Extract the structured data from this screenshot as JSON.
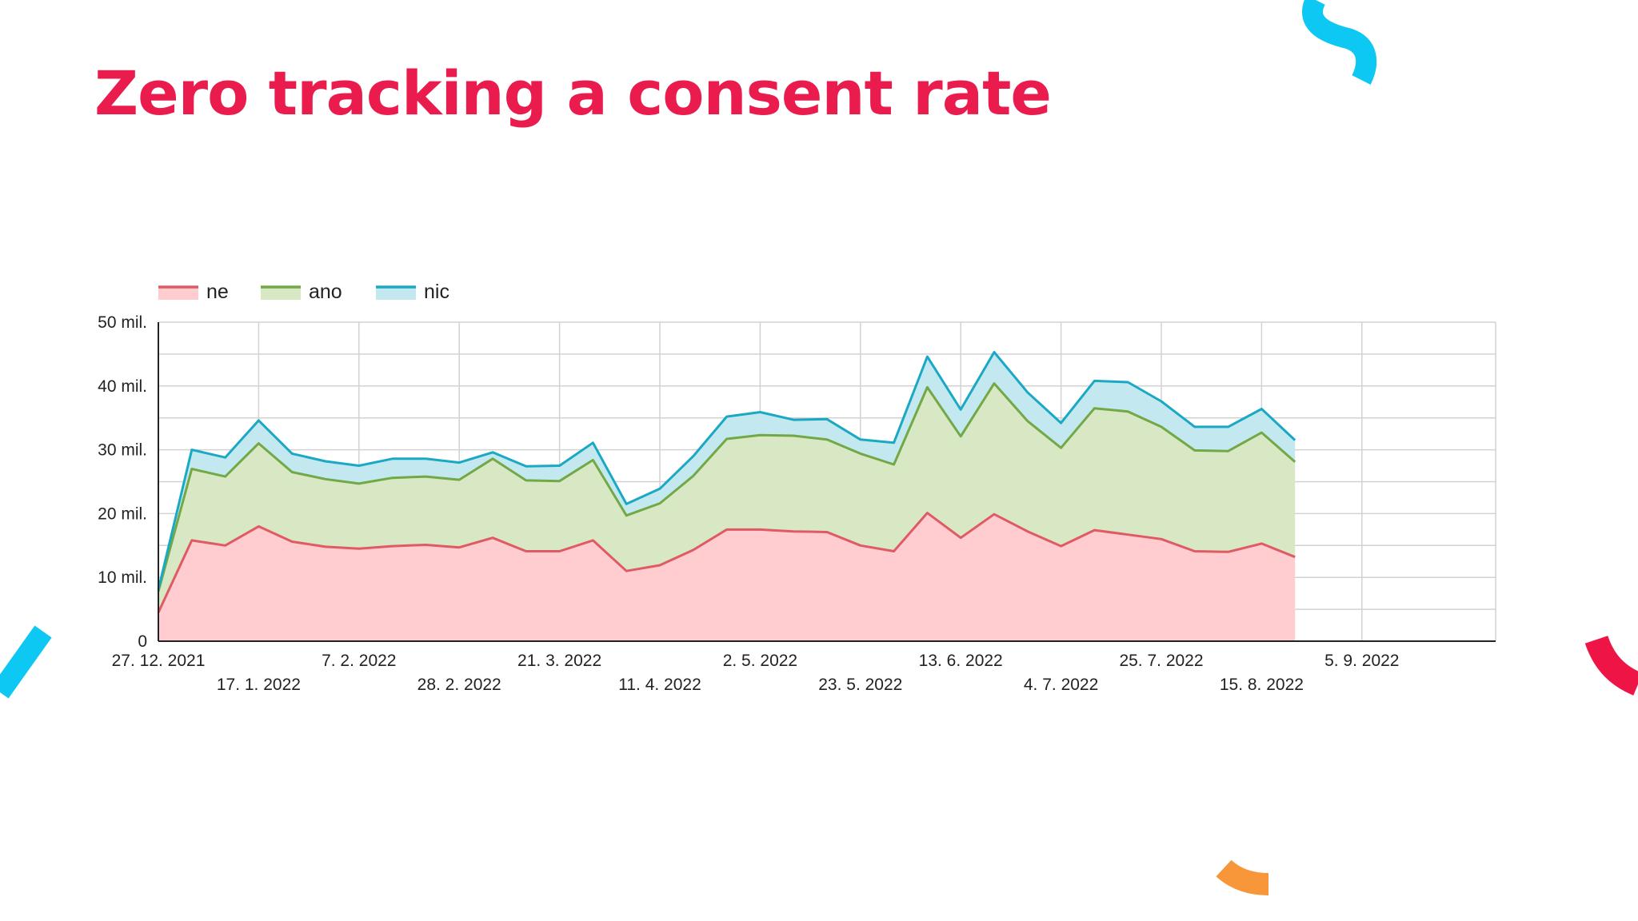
{
  "slide": {
    "title": "Zero tracking a consent rate"
  },
  "colors": {
    "title": "#ea1c4d",
    "ne_line": "#e05a63",
    "ne_fill": "#ffccd0",
    "ano_line": "#72a845",
    "ano_fill": "#d8e8c4",
    "nic_line": "#1aa9c4",
    "nic_fill": "#c4e8f0",
    "deco_cyan": "#0cc8f2",
    "deco_red": "#ee1446",
    "deco_orange": "#f7973a"
  },
  "chart_data": {
    "type": "area",
    "stacked": true,
    "grid": true,
    "legend_position": "top-left",
    "x_unit": "date",
    "x_range": [
      "2021-12-27",
      "2022-10-03"
    ],
    "y_range": [
      0,
      50
    ],
    "y_unit": "mil.",
    "y_ticks": [
      0,
      10,
      20,
      30,
      40,
      50
    ],
    "y_tick_labels": [
      "0",
      "10 mil.",
      "20 mil.",
      "30 mil.",
      "40 mil.",
      "50 mil."
    ],
    "x_ticks": [
      "2021-12-27",
      "2022-01-17",
      "2022-02-07",
      "2022-02-28",
      "2022-03-21",
      "2022-04-11",
      "2022-05-02",
      "2022-05-23",
      "2022-06-13",
      "2022-07-04",
      "2022-07-25",
      "2022-08-15",
      "2022-09-05"
    ],
    "x_tick_labels": [
      "27. 12. 2021",
      "17. 1. 2022",
      "7. 2. 2022",
      "28. 2. 2022",
      "21. 3. 2022",
      "11. 4. 2022",
      "2. 5. 2022",
      "23. 5. 2022",
      "13. 6. 2022",
      "4. 7. 2022",
      "25. 7. 2022",
      "15. 8. 2022",
      "5. 9. 2022"
    ],
    "x": [
      "2021-12-27",
      "2022-01-03",
      "2022-01-10",
      "2022-01-17",
      "2022-01-24",
      "2022-01-31",
      "2022-02-07",
      "2022-02-14",
      "2022-02-21",
      "2022-02-28",
      "2022-03-07",
      "2022-03-14",
      "2022-03-21",
      "2022-03-28",
      "2022-04-04",
      "2022-04-11",
      "2022-04-18",
      "2022-04-25",
      "2022-05-02",
      "2022-05-09",
      "2022-05-16",
      "2022-05-23",
      "2022-05-30",
      "2022-06-06",
      "2022-06-13",
      "2022-06-20",
      "2022-06-27",
      "2022-07-04",
      "2022-07-11",
      "2022-07-18",
      "2022-07-25",
      "2022-08-01",
      "2022-08-08",
      "2022-08-15",
      "2022-08-22"
    ],
    "series": [
      {
        "name": "ne",
        "values": [
          4.5,
          15.8,
          15.0,
          18.0,
          15.6,
          14.8,
          14.5,
          14.9,
          15.1,
          14.7,
          16.2,
          14.1,
          14.1,
          15.8,
          11.0,
          11.9,
          14.3,
          17.5,
          17.5,
          17.2,
          17.1,
          15.0,
          14.1,
          20.1,
          16.2,
          19.9,
          17.2,
          14.9,
          17.4,
          16.7,
          16.0,
          14.1,
          14.0,
          15.3,
          13.2
        ]
      },
      {
        "name": "ano",
        "values": [
          3.3,
          11.2,
          10.8,
          13.0,
          10.9,
          10.6,
          10.2,
          10.7,
          10.7,
          10.6,
          12.4,
          11.1,
          11.0,
          12.6,
          8.7,
          9.7,
          11.6,
          14.2,
          14.8,
          15.0,
          14.5,
          14.4,
          13.6,
          19.7,
          15.9,
          20.5,
          17.3,
          15.4,
          19.1,
          19.3,
          17.6,
          15.8,
          15.8,
          17.4,
          14.9
        ]
      },
      {
        "name": "nic",
        "values": [
          0.3,
          3.0,
          3.0,
          3.6,
          2.9,
          2.8,
          2.8,
          3.0,
          2.8,
          2.7,
          1.0,
          2.2,
          2.4,
          2.7,
          1.8,
          2.3,
          3.1,
          3.5,
          3.6,
          2.5,
          3.2,
          2.2,
          3.4,
          4.8,
          4.2,
          4.9,
          4.5,
          3.9,
          4.3,
          4.6,
          4.0,
          3.7,
          3.8,
          3.7,
          3.4
        ]
      }
    ]
  }
}
